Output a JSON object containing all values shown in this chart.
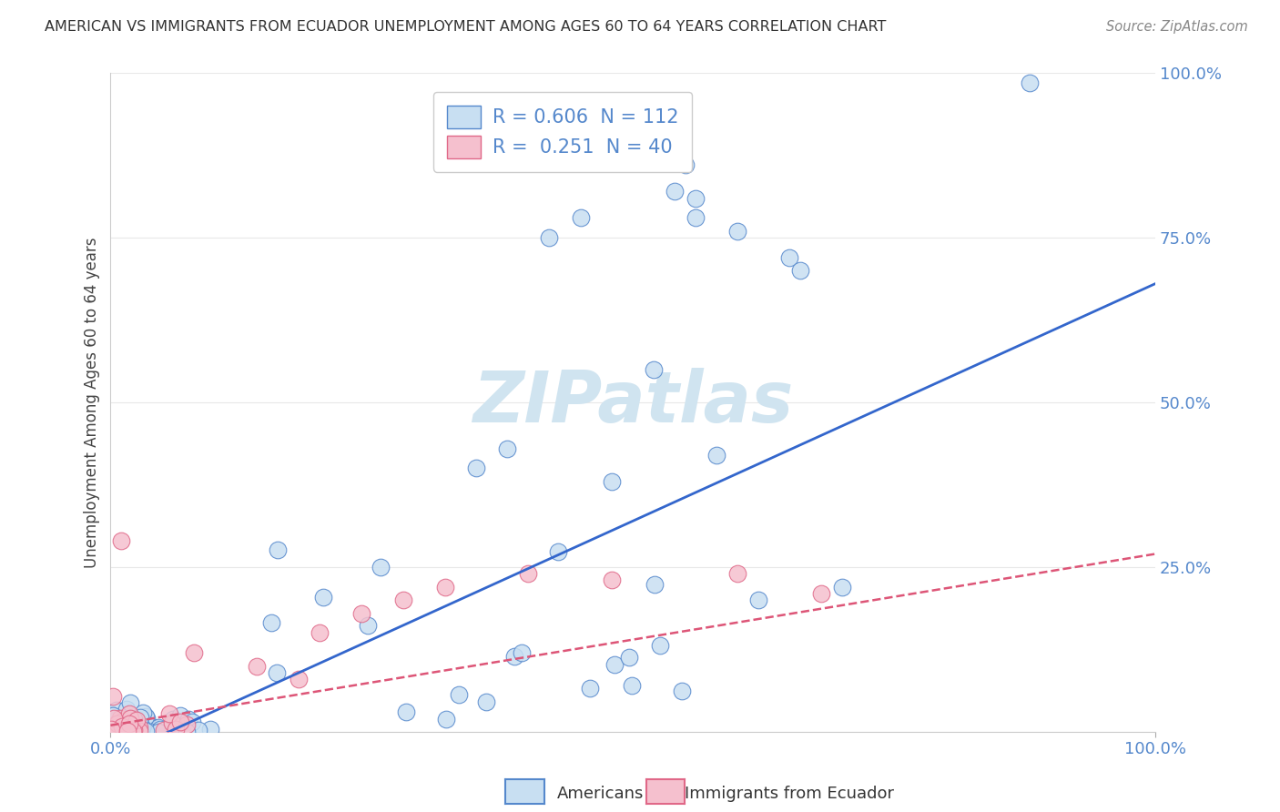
{
  "title": "AMERICAN VS IMMIGRANTS FROM ECUADOR UNEMPLOYMENT AMONG AGES 60 TO 64 YEARS CORRELATION CHART",
  "source": "Source: ZipAtlas.com",
  "ylabel": "Unemployment Among Ages 60 to 64 years",
  "R_american": 0.606,
  "N_american": 112,
  "R_ecuador": 0.251,
  "N_ecuador": 40,
  "color_american_fill": "#c8dff2",
  "color_american_edge": "#5588cc",
  "color_ecuador_fill": "#f5c0ce",
  "color_ecuador_edge": "#e06888",
  "color_line_american": "#3366cc",
  "color_line_ecuador": "#dd5577",
  "watermark_color": "#d0e4f0",
  "background_color": "#ffffff",
  "grid_color": "#e8e8e8",
  "xlim": [
    0.0,
    1.0
  ],
  "ylim": [
    0.0,
    1.0
  ],
  "yticks_right": [
    0.0,
    0.25,
    0.5,
    0.75,
    1.0
  ],
  "ytick_right_labels": [
    "",
    "25.0%",
    "50.0%",
    "75.0%",
    "100.0%"
  ],
  "xtick_labels": [
    "0.0%",
    "100.0%"
  ],
  "title_color": "#333333",
  "source_color": "#888888",
  "tick_color": "#5588cc",
  "ylabel_color": "#444444",
  "legend_label_color": "#5588cc"
}
